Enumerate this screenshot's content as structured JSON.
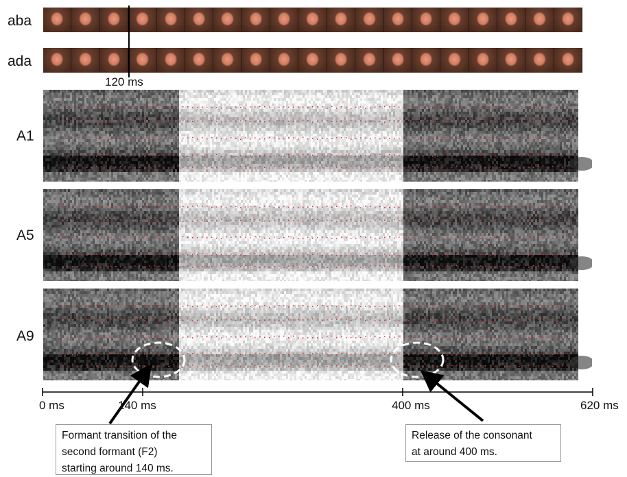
{
  "rows": {
    "aba_label": "aba",
    "ada_label": "ada",
    "marker_label": "120 ms"
  },
  "spectrograms": [
    {
      "label": "A1"
    },
    {
      "label": "A5"
    },
    {
      "label": "A9"
    }
  ],
  "timeline": {
    "ticks": [
      "0 ms",
      "140 ms",
      "400 ms",
      "620 ms"
    ]
  },
  "callouts": {
    "left": {
      "line1": "Formant transition of the",
      "line2": "second formant (F2)",
      "line3": "starting around 140 ms."
    },
    "right": {
      "line1": "Release of the consonant",
      "line2": "at around 400 ms."
    }
  },
  "colors": {
    "formant_dots": "#e03030",
    "highlight_ellipse": "#ffffff"
  }
}
